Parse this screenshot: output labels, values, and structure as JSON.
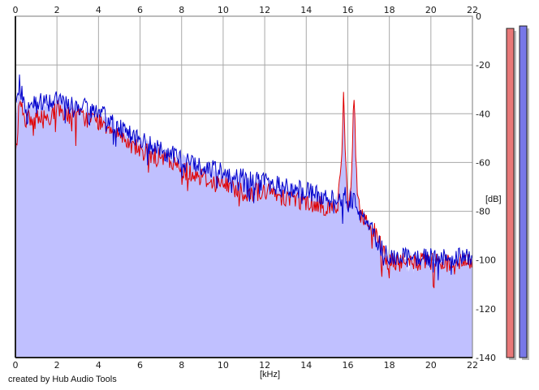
{
  "app": {
    "credit": "created by Hub Audio Tools"
  },
  "chart_data": {
    "type": "area",
    "xlabel": "[kHz]",
    "ylabel": "[dB]",
    "xlim": [
      0,
      22
    ],
    "ylim": [
      -140,
      0
    ],
    "x_ticks": [
      0,
      2,
      4,
      6,
      8,
      10,
      12,
      14,
      16,
      18,
      20,
      22
    ],
    "y_ticks": [
      0,
      -20,
      -40,
      -60,
      -80,
      -100,
      -120,
      -140
    ],
    "grid": true,
    "colors": {
      "fill": "#c0c0ff",
      "red": "#e00000",
      "blue": "#0000cc",
      "grid": "#a8a8a8",
      "meter_red": "#e87878",
      "meter_blue": "#7878e8"
    },
    "x": [
      0,
      0.2,
      0.3,
      0.5,
      0.8,
      1,
      1.5,
      2,
      2.5,
      3,
      3.5,
      4,
      4.5,
      5,
      5.5,
      6,
      6.5,
      7,
      7.5,
      8,
      8.5,
      9,
      9.5,
      10,
      10.5,
      11,
      11.5,
      12,
      12.5,
      13,
      13.5,
      14,
      14.5,
      15,
      15.5,
      15.7,
      15.8,
      15.9,
      16,
      16.15,
      16.3,
      16.45,
      16.6,
      17,
      17.3,
      17.6,
      18,
      18.5,
      19,
      19.5,
      20,
      20.5,
      21,
      21.5,
      22
    ],
    "series": [
      {
        "values": [
          -60,
          -33,
          -37,
          -42,
          -43,
          -42,
          -42,
          -38,
          -40,
          -41,
          -42,
          -43,
          -45,
          -48,
          -52,
          -55,
          -57,
          -58,
          -60,
          -63,
          -64,
          -66,
          -68,
          -69,
          -70,
          -72,
          -72,
          -72,
          -73,
          -74,
          -75,
          -76,
          -77,
          -78,
          -79,
          -60,
          -30,
          -60,
          -79,
          -70,
          -34,
          -70,
          -82,
          -84,
          -89,
          -95,
          -101,
          -101,
          -101,
          -101,
          -101,
          -101,
          -101,
          -101,
          -101
        ]
      },
      {
        "values": [
          -33,
          -27,
          -32,
          -39,
          -37,
          -35,
          -35,
          -34,
          -36,
          -37,
          -38,
          -40,
          -42,
          -45,
          -48,
          -51,
          -53,
          -55,
          -57,
          -58,
          -60,
          -62,
          -63,
          -64,
          -65,
          -66,
          -67,
          -68,
          -69,
          -70,
          -71,
          -72,
          -73,
          -74,
          -75,
          -74,
          -72,
          -73,
          -77,
          -75,
          -73,
          -77,
          -82,
          -86,
          -90,
          -95,
          -98,
          -99,
          -99,
          -99,
          -99,
          -99,
          -99,
          -99,
          -99
        ]
      }
    ],
    "envelope": [
      -45,
      -27,
      -32,
      -38,
      -37,
      -35,
      -35,
      -33,
      -36,
      -37,
      -38,
      -40,
      -42,
      -45,
      -48,
      -51,
      -53,
      -55,
      -57,
      -58,
      -60,
      -62,
      -63,
      -64,
      -65,
      -66,
      -67,
      -68,
      -69,
      -70,
      -71,
      -72,
      -73,
      -74,
      -75,
      -60,
      -30,
      -60,
      -77,
      -70,
      -34,
      -70,
      -82,
      -84,
      -89,
      -95,
      -98,
      -99,
      -99,
      -99,
      -99,
      -99,
      -99,
      -99,
      -99
    ],
    "meters": [
      {
        "color": "red",
        "level_db": -5
      },
      {
        "color": "blue",
        "level_db": -4
      }
    ]
  }
}
